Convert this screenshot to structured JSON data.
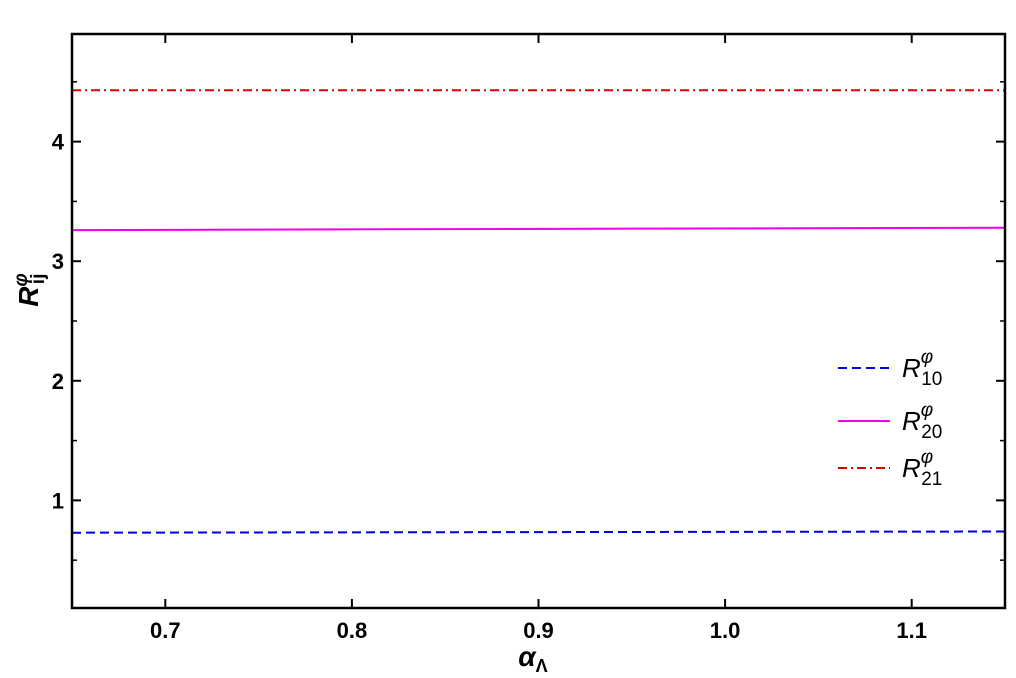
{
  "chart_data": {
    "type": "line",
    "xlim": [
      0.65,
      1.15
    ],
    "ylim": [
      0.1,
      4.9
    ],
    "x_ticks": [
      "0.7",
      "0.8",
      "0.9",
      "1.0",
      "1.1"
    ],
    "y_ticks": [
      "1",
      "2",
      "3",
      "4"
    ],
    "xlabel": {
      "base": "α",
      "sub": "Λ"
    },
    "ylabel": {
      "base": "R",
      "sup": "φ",
      "sub": "ij"
    },
    "legend_position": "right",
    "series": [
      {
        "name": {
          "base": "R",
          "sup": "φ",
          "sub": "10"
        },
        "color": "#0000dd",
        "style": "dashed",
        "x": [
          0.65,
          1.15
        ],
        "y": [
          0.73,
          0.74
        ]
      },
      {
        "name": {
          "base": "R",
          "sup": "φ",
          "sub": "20"
        },
        "color": "#ee00ee",
        "style": "solid",
        "x": [
          0.65,
          1.15
        ],
        "y": [
          3.26,
          3.28
        ]
      },
      {
        "name": {
          "base": "R",
          "sup": "φ",
          "sub": "21"
        },
        "color": "#dd0000",
        "style": "dashdot",
        "x": [
          0.65,
          1.15
        ],
        "y": [
          4.43,
          4.43
        ]
      }
    ]
  }
}
